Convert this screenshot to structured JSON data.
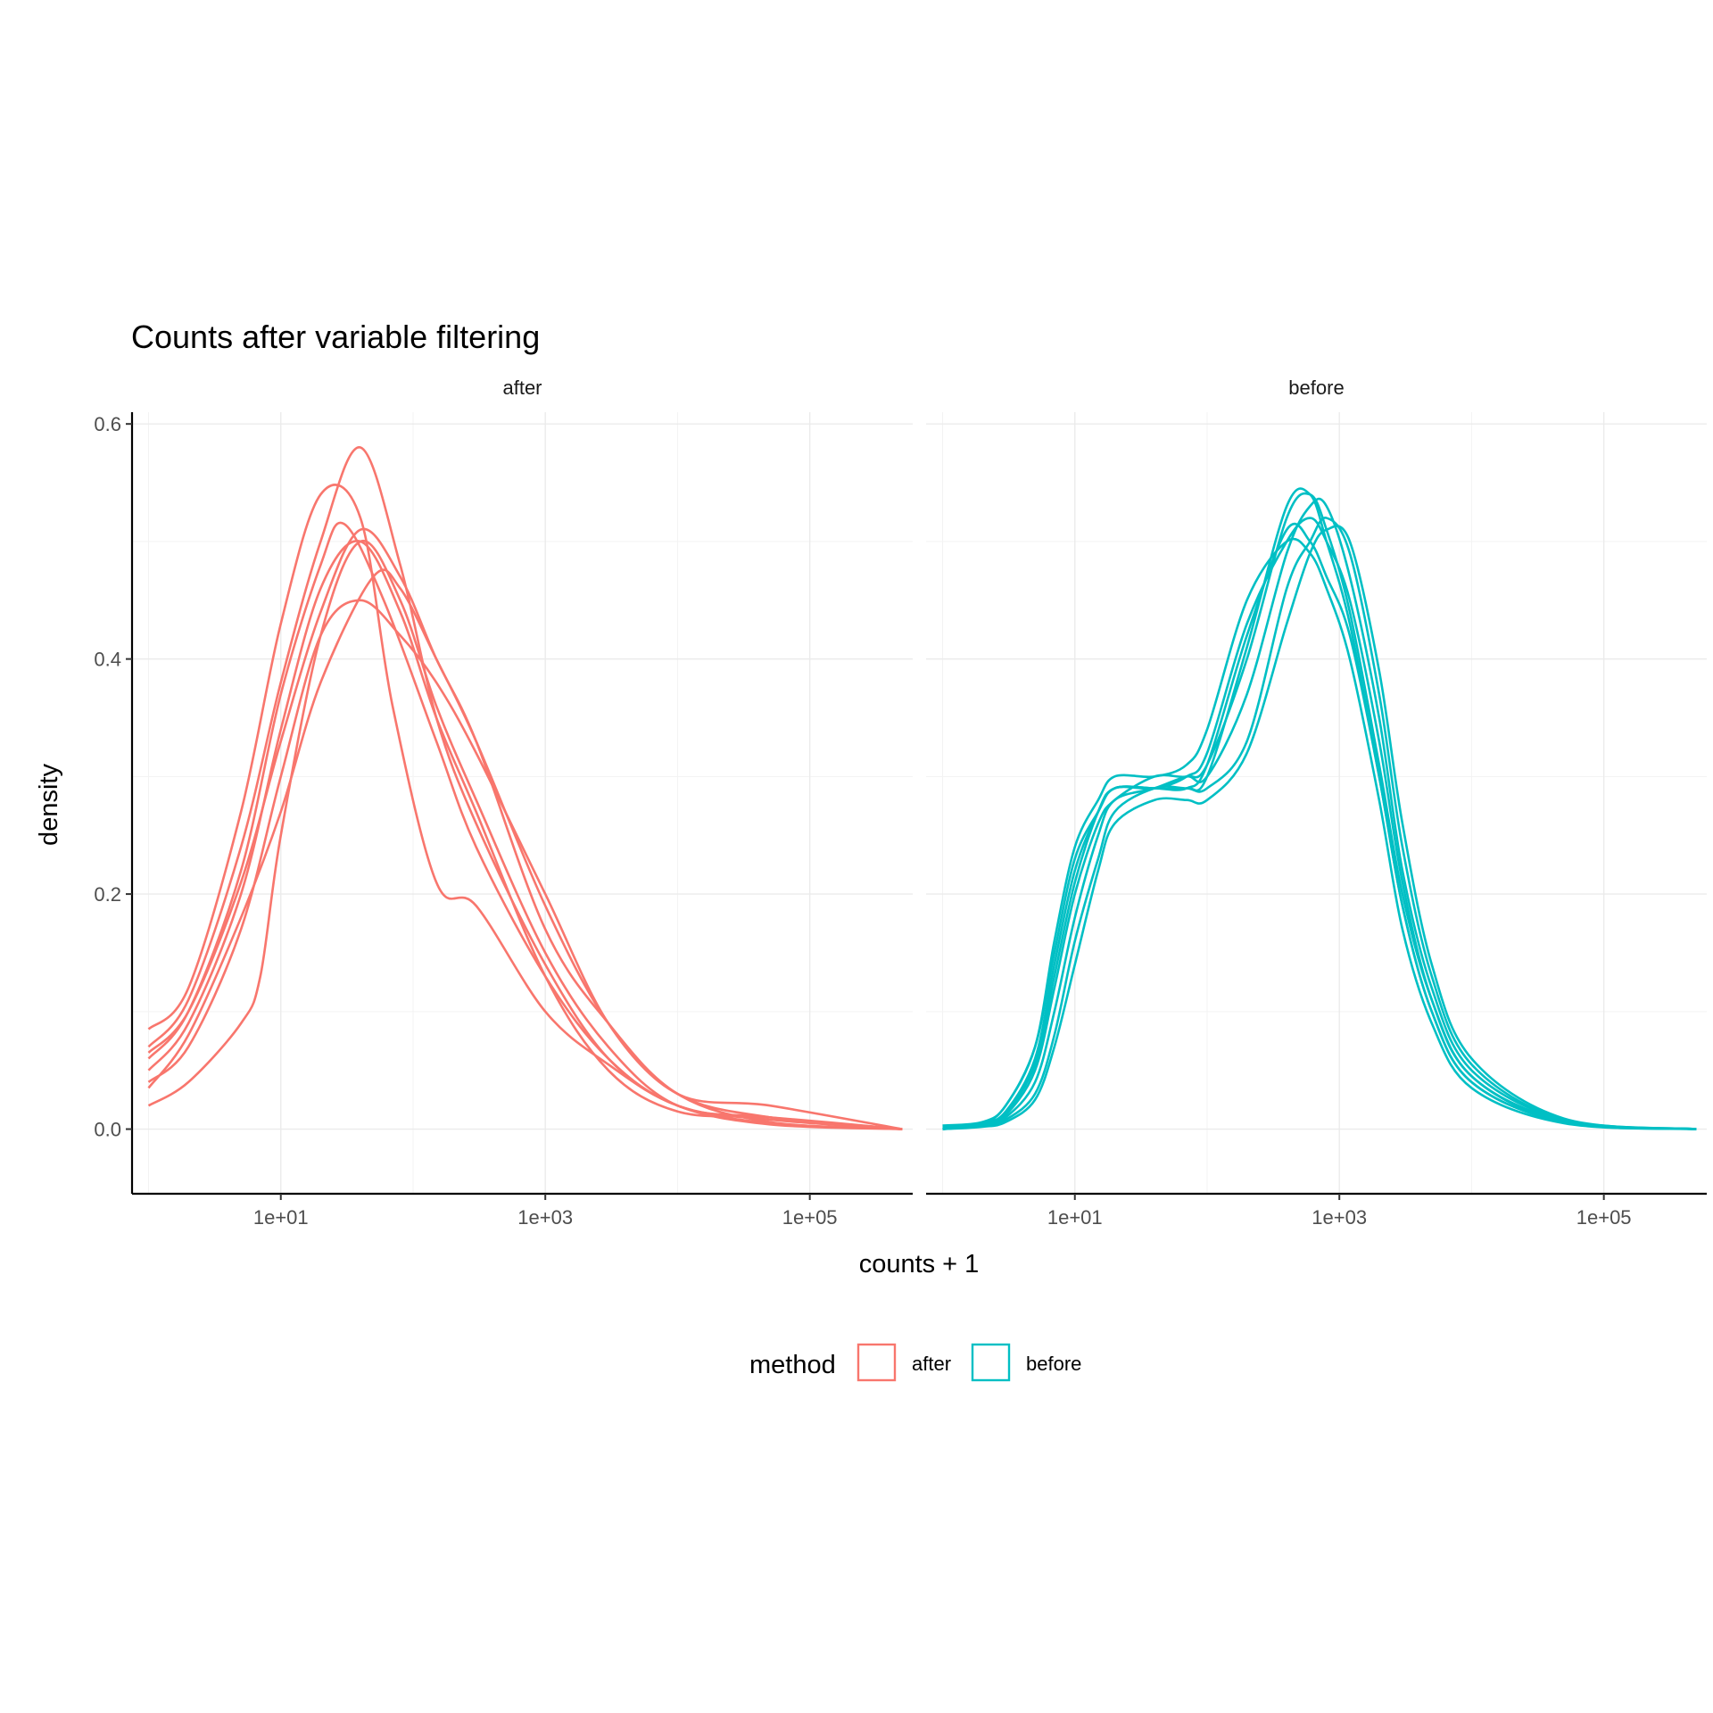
{
  "chart_data": {
    "type": "line",
    "title": "Counts after variable filtering",
    "xlabel": "counts + 1",
    "ylabel": "density",
    "x_scale": "log10",
    "xlim": [
      0.75,
      600000
    ],
    "ylim": [
      -0.055,
      0.61
    ],
    "x_ticks": [
      {
        "value": 10,
        "label": "1e+01"
      },
      {
        "value": 1000,
        "label": "1e+03"
      },
      {
        "value": 100000,
        "label": "1e+05"
      }
    ],
    "y_ticks": [
      {
        "value": 0.0,
        "label": "0.0"
      },
      {
        "value": 0.2,
        "label": "0.2"
      },
      {
        "value": 0.4,
        "label": "0.4"
      },
      {
        "value": 0.6,
        "label": "0.6"
      }
    ],
    "grid": true,
    "legend": {
      "title": "method",
      "position": "bottom",
      "entries": [
        {
          "label": "after",
          "color": "#F8766D"
        },
        {
          "label": "before",
          "color": "#00BFC4"
        }
      ]
    },
    "facets": [
      {
        "label": "after",
        "color": "#F8766D",
        "series": [
          {
            "x": [
              1,
              2,
              5,
              10,
              20,
              40,
              70,
              150,
              300,
              1000,
              3000,
              10000,
              50000,
              500000
            ],
            "y": [
              0.085,
              0.12,
              0.27,
              0.43,
              0.54,
              0.52,
              0.36,
              0.21,
              0.19,
              0.1,
              0.055,
              0.02,
              0.005,
              0.0
            ]
          },
          {
            "x": [
              1,
              2,
              5,
              10,
              20,
              40,
              80,
              150,
              300,
              1000,
              3000,
              10000,
              50000,
              500000
            ],
            "y": [
              0.07,
              0.11,
              0.24,
              0.38,
              0.5,
              0.58,
              0.48,
              0.35,
              0.26,
              0.14,
              0.06,
              0.02,
              0.004,
              0.0
            ]
          },
          {
            "x": [
              1,
              2,
              5,
              10,
              20,
              40,
              80,
              150,
              300,
              1000,
              3000,
              10000,
              50000,
              500000
            ],
            "y": [
              0.065,
              0.1,
              0.21,
              0.33,
              0.44,
              0.51,
              0.47,
              0.4,
              0.33,
              0.17,
              0.09,
              0.03,
              0.006,
              0.0
            ]
          },
          {
            "x": [
              1,
              2,
              5,
              10,
              20,
              30,
              60,
              150,
              300,
              1000,
              3000,
              10000,
              50000,
              500000
            ],
            "y": [
              0.06,
              0.1,
              0.22,
              0.37,
              0.48,
              0.515,
              0.45,
              0.33,
              0.24,
              0.13,
              0.06,
              0.02,
              0.008,
              0.0
            ]
          },
          {
            "x": [
              1,
              2,
              5,
              10,
              20,
              40,
              80,
              150,
              300,
              1000,
              3000,
              10000,
              50000,
              500000
            ],
            "y": [
              0.05,
              0.09,
              0.2,
              0.34,
              0.46,
              0.5,
              0.44,
              0.35,
              0.27,
              0.13,
              0.05,
              0.015,
              0.01,
              0.0
            ]
          },
          {
            "x": [
              1,
              2,
              5,
              10,
              20,
              40,
              80,
              150,
              300,
              1000,
              3000,
              10000,
              50000,
              500000
            ],
            "y": [
              0.04,
              0.07,
              0.17,
              0.3,
              0.42,
              0.45,
              0.42,
              0.38,
              0.32,
              0.2,
              0.09,
              0.03,
              0.01,
              0.0
            ]
          },
          {
            "x": [
              1,
              2,
              5,
              10,
              20,
              50,
              80,
              150,
              300,
              1000,
              3000,
              10000,
              50000,
              500000
            ],
            "y": [
              0.035,
              0.08,
              0.18,
              0.27,
              0.38,
              0.47,
              0.46,
              0.4,
              0.33,
              0.19,
              0.09,
              0.03,
              0.02,
              0.0
            ]
          },
          {
            "x": [
              1,
              2,
              5,
              7,
              10,
              20,
              40,
              80,
              150,
              300,
              1000,
              3000,
              10000,
              50000,
              500000
            ],
            "y": [
              0.02,
              0.04,
              0.09,
              0.13,
              0.25,
              0.42,
              0.5,
              0.45,
              0.36,
              0.28,
              0.15,
              0.07,
              0.02,
              0.01,
              0.0
            ]
          }
        ]
      },
      {
        "label": "before",
        "color": "#00BFC4",
        "series": [
          {
            "x": [
              1,
              2,
              3,
              5,
              7,
              10,
              15,
              20,
              40,
              70,
              100,
              200,
              400,
              600,
              800,
              1200,
              2000,
              3000,
              5000,
              10000,
              50000,
              500000
            ],
            "y": [
              0.0,
              0.005,
              0.015,
              0.06,
              0.14,
              0.22,
              0.27,
              0.29,
              0.29,
              0.29,
              0.31,
              0.42,
              0.51,
              0.5,
              0.47,
              0.42,
              0.3,
              0.19,
              0.1,
              0.04,
              0.006,
              0.0
            ]
          },
          {
            "x": [
              1,
              2,
              3,
              5,
              7,
              10,
              15,
              20,
              40,
              70,
              100,
              200,
              400,
              600,
              800,
              1200,
              2000,
              3000,
              5000,
              10000,
              50000,
              500000
            ],
            "y": [
              0.0,
              0.004,
              0.012,
              0.05,
              0.12,
              0.2,
              0.26,
              0.28,
              0.3,
              0.3,
              0.31,
              0.4,
              0.52,
              0.54,
              0.51,
              0.44,
              0.31,
              0.2,
              0.11,
              0.045,
              0.006,
              0.0
            ]
          },
          {
            "x": [
              1,
              2,
              3,
              5,
              7,
              10,
              15,
              20,
              40,
              70,
              100,
              200,
              400,
              600,
              800,
              1200,
              2000,
              3000,
              5000,
              10000,
              50000,
              500000
            ],
            "y": [
              0.002,
              0.005,
              0.02,
              0.07,
              0.16,
              0.24,
              0.28,
              0.3,
              0.3,
              0.31,
              0.34,
              0.45,
              0.5,
              0.49,
              0.46,
              0.4,
              0.28,
              0.17,
              0.09,
              0.035,
              0.005,
              0.0
            ]
          },
          {
            "x": [
              1,
              2,
              3,
              5,
              7,
              10,
              15,
              20,
              40,
              70,
              100,
              200,
              400,
              600,
              800,
              1200,
              2000,
              3000,
              5000,
              10000,
              50000,
              500000
            ],
            "y": [
              0.0,
              0.003,
              0.01,
              0.04,
              0.1,
              0.18,
              0.25,
              0.28,
              0.29,
              0.3,
              0.3,
              0.37,
              0.49,
              0.53,
              0.53,
              0.47,
              0.35,
              0.22,
              0.12,
              0.05,
              0.008,
              0.0
            ]
          },
          {
            "x": [
              1,
              2,
              3,
              5,
              7,
              10,
              15,
              20,
              40,
              70,
              100,
              200,
              400,
              600,
              800,
              1200,
              2000,
              3000,
              5000,
              10000,
              50000,
              500000
            ],
            "y": [
              0.0,
              0.003,
              0.008,
              0.03,
              0.08,
              0.16,
              0.23,
              0.27,
              0.29,
              0.29,
              0.29,
              0.33,
              0.46,
              0.5,
              0.52,
              0.49,
              0.37,
              0.24,
              0.13,
              0.055,
              0.008,
              0.0
            ]
          },
          {
            "x": [
              1,
              2,
              3,
              5,
              7,
              10,
              15,
              20,
              40,
              70,
              100,
              200,
              400,
              600,
              800,
              1200,
              2000,
              3000,
              5000,
              10000,
              50000,
              500000
            ],
            "y": [
              0.0,
              0.004,
              0.014,
              0.055,
              0.13,
              0.21,
              0.27,
              0.29,
              0.29,
              0.29,
              0.3,
              0.41,
              0.53,
              0.54,
              0.5,
              0.43,
              0.3,
              0.19,
              0.1,
              0.04,
              0.006,
              0.0
            ]
          },
          {
            "x": [
              1,
              2,
              3,
              5,
              7,
              10,
              15,
              20,
              40,
              70,
              100,
              200,
              400,
              600,
              800,
              1200,
              2000,
              3000,
              5000,
              10000,
              50000,
              500000
            ],
            "y": [
              0.0,
              0.002,
              0.006,
              0.025,
              0.07,
              0.14,
              0.22,
              0.26,
              0.28,
              0.28,
              0.28,
              0.32,
              0.43,
              0.49,
              0.51,
              0.5,
              0.39,
              0.26,
              0.14,
              0.06,
              0.009,
              0.0
            ]
          },
          {
            "x": [
              1,
              2,
              3,
              5,
              7,
              10,
              15,
              20,
              40,
              70,
              100,
              200,
              400,
              600,
              800,
              1200,
              2000,
              3000,
              5000,
              10000,
              50000,
              500000
            ],
            "y": [
              0.003,
              0.006,
              0.02,
              0.07,
              0.15,
              0.23,
              0.27,
              0.29,
              0.29,
              0.3,
              0.32,
              0.43,
              0.5,
              0.52,
              0.5,
              0.45,
              0.33,
              0.21,
              0.11,
              0.045,
              0.007,
              0.0
            ]
          }
        ]
      }
    ]
  }
}
